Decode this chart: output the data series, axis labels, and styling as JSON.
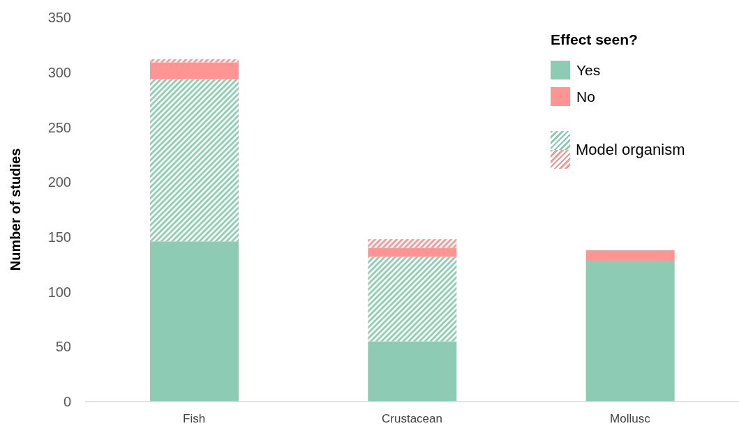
{
  "chart_data": {
    "type": "bar",
    "categories": [
      "Fish",
      "Crustacean",
      "Mollusc"
    ],
    "ylabel": "Number of studies",
    "legend_title": "Effect seen?",
    "stacked": true,
    "series": [
      {
        "name": "Yes",
        "color": "#8dcbb4",
        "values": [
          146,
          55,
          129
        ]
      },
      {
        "name": "Model organism",
        "color": "#8dcbb4",
        "values": [
          148,
          77,
          null
        ]
      },
      {
        "name": "No",
        "color": "#ff9494",
        "values": [
          15,
          8,
          9
        ]
      },
      {
        "color": "#ff9494",
        "values": [
          3,
          8,
          null
        ]
      }
    ],
    "ylim": [
      0,
      350
    ],
    "yticks": [
      0,
      50,
      100,
      150,
      200,
      250,
      300,
      350
    ],
    "legend": "top right"
  }
}
